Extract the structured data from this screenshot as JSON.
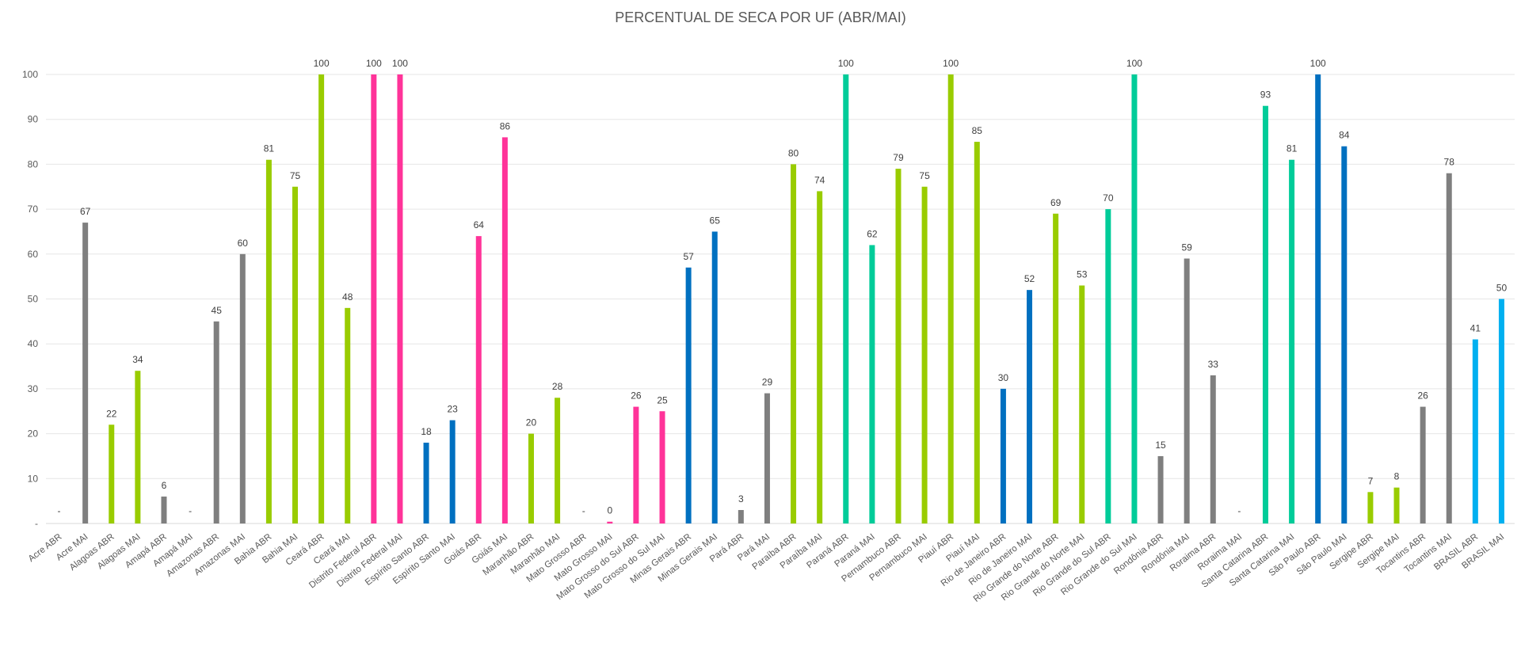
{
  "chart_data": {
    "type": "bar",
    "title": "PERCENTUAL DE SECA POR UF (ABR/MAI)",
    "xlabel": "",
    "ylabel": "",
    "ylim": [
      0,
      100
    ],
    "y_ticks": [
      "-",
      "10",
      "20",
      "30",
      "40",
      "50",
      "60",
      "70",
      "80",
      "90",
      "100"
    ],
    "grid": true,
    "legend": "none",
    "missing_label": "-",
    "bars": [
      {
        "category": "Acre ABR",
        "value": null,
        "label": "-",
        "color": "#7f7f7f"
      },
      {
        "category": "Acre MAI",
        "value": 67,
        "label": "67",
        "color": "#7f7f7f"
      },
      {
        "category": "Alagoas ABR",
        "value": 22,
        "label": "22",
        "color": "#99cc00"
      },
      {
        "category": "Alagoas MAI",
        "value": 34,
        "label": "34",
        "color": "#99cc00"
      },
      {
        "category": "Amapá ABR",
        "value": 6,
        "label": "6",
        "color": "#7f7f7f"
      },
      {
        "category": "Amapá MAI",
        "value": null,
        "label": "-",
        "color": "#7f7f7f"
      },
      {
        "category": "Amazonas ABR",
        "value": 45,
        "label": "45",
        "color": "#7f7f7f"
      },
      {
        "category": "Amazonas MAI",
        "value": 60,
        "label": "60",
        "color": "#7f7f7f"
      },
      {
        "category": "Bahia ABR",
        "value": 81,
        "label": "81",
        "color": "#99cc00"
      },
      {
        "category": "Bahia MAI",
        "value": 75,
        "label": "75",
        "color": "#99cc00"
      },
      {
        "category": "Ceará ABR",
        "value": 100,
        "label": "100",
        "color": "#99cc00"
      },
      {
        "category": "Ceará MAI",
        "value": 48,
        "label": "48",
        "color": "#99cc00"
      },
      {
        "category": "Distrito Federal ABR",
        "value": 100,
        "label": "100",
        "color": "#ff3399"
      },
      {
        "category": "Distrito Federal MAI",
        "value": 100,
        "label": "100",
        "color": "#ff3399"
      },
      {
        "category": "Espírito Santo ABR",
        "value": 18,
        "label": "18",
        "color": "#0070c0"
      },
      {
        "category": "Espírito Santo MAI",
        "value": 23,
        "label": "23",
        "color": "#0070c0"
      },
      {
        "category": "Goiás ABR",
        "value": 64,
        "label": "64",
        "color": "#ff3399"
      },
      {
        "category": "Goiás MAI",
        "value": 86,
        "label": "86",
        "color": "#ff3399"
      },
      {
        "category": "Maranhão ABR",
        "value": 20,
        "label": "20",
        "color": "#99cc00"
      },
      {
        "category": "Maranhão MAI",
        "value": 28,
        "label": "28",
        "color": "#99cc00"
      },
      {
        "category": "Mato Grosso ABR",
        "value": null,
        "label": "-",
        "color": "#ff3399"
      },
      {
        "category": "Mato Grosso MAI",
        "value": 0.4,
        "label": "0",
        "color": "#ff3399"
      },
      {
        "category": "Mato Grosso do Sul ABR",
        "value": 26,
        "label": "26",
        "color": "#ff3399"
      },
      {
        "category": "Mato Grosso do Sul MAI",
        "value": 25,
        "label": "25",
        "color": "#ff3399"
      },
      {
        "category": "Minas Gerais ABR",
        "value": 57,
        "label": "57",
        "color": "#0070c0"
      },
      {
        "category": "Minas Gerais MAI",
        "value": 65,
        "label": "65",
        "color": "#0070c0"
      },
      {
        "category": "Pará ABR",
        "value": 3,
        "label": "3",
        "color": "#7f7f7f"
      },
      {
        "category": "Pará MAI",
        "value": 29,
        "label": "29",
        "color": "#7f7f7f"
      },
      {
        "category": "Paraíba ABR",
        "value": 80,
        "label": "80",
        "color": "#99cc00"
      },
      {
        "category": "Paraíba MAI",
        "value": 74,
        "label": "74",
        "color": "#99cc00"
      },
      {
        "category": "Paraná ABR",
        "value": 100,
        "label": "100",
        "color": "#00cc99"
      },
      {
        "category": "Paraná MAI",
        "value": 62,
        "label": "62",
        "color": "#00cc99"
      },
      {
        "category": "Pernambuco ABR",
        "value": 79,
        "label": "79",
        "color": "#99cc00"
      },
      {
        "category": "Pernambuco MAI",
        "value": 75,
        "label": "75",
        "color": "#99cc00"
      },
      {
        "category": "Piauí ABR",
        "value": 100,
        "label": "100",
        "color": "#99cc00"
      },
      {
        "category": "Piauí MAI",
        "value": 85,
        "label": "85",
        "color": "#99cc00"
      },
      {
        "category": "Rio de Janeiro ABR",
        "value": 30,
        "label": "30",
        "color": "#0070c0"
      },
      {
        "category": "Rio de Janeiro MAI",
        "value": 52,
        "label": "52",
        "color": "#0070c0"
      },
      {
        "category": "Rio Grande do Norte ABR",
        "value": 69,
        "label": "69",
        "color": "#99cc00"
      },
      {
        "category": "Rio Grande do Norte MAI",
        "value": 53,
        "label": "53",
        "color": "#99cc00"
      },
      {
        "category": "Rio Grande do Sul ABR",
        "value": 70,
        "label": "70",
        "color": "#00cc99"
      },
      {
        "category": "Rio Grande do Sul MAI",
        "value": 100,
        "label": "100",
        "color": "#00cc99"
      },
      {
        "category": "Rondônia ABR",
        "value": 15,
        "label": "15",
        "color": "#7f7f7f"
      },
      {
        "category": "Rondônia MAI",
        "value": 59,
        "label": "59",
        "color": "#7f7f7f"
      },
      {
        "category": "Roraima ABR",
        "value": 33,
        "label": "33",
        "color": "#7f7f7f"
      },
      {
        "category": "Roraima MAI",
        "value": null,
        "label": "-",
        "color": "#7f7f7f"
      },
      {
        "category": "Santa Catarina ABR",
        "value": 93,
        "label": "93",
        "color": "#00cc99"
      },
      {
        "category": "Santa Catarina MAI",
        "value": 81,
        "label": "81",
        "color": "#00cc99"
      },
      {
        "category": "São Paulo ABR",
        "value": 100,
        "label": "100",
        "color": "#0070c0"
      },
      {
        "category": "São Paulo MAI",
        "value": 84,
        "label": "84",
        "color": "#0070c0"
      },
      {
        "category": "Sergipe ABR",
        "value": 7,
        "label": "7",
        "color": "#99cc00"
      },
      {
        "category": "Sergipe MAI",
        "value": 8,
        "label": "8",
        "color": "#99cc00"
      },
      {
        "category": "Tocantins ABR",
        "value": 26,
        "label": "26",
        "color": "#7f7f7f"
      },
      {
        "category": "Tocantins MAI",
        "value": 78,
        "label": "78",
        "color": "#7f7f7f"
      },
      {
        "category": "BRASIL ABR",
        "value": 41,
        "label": "41",
        "color": "#00b0f0"
      },
      {
        "category": "BRASIL MAI",
        "value": 50,
        "label": "50",
        "color": "#00b0f0"
      }
    ]
  }
}
